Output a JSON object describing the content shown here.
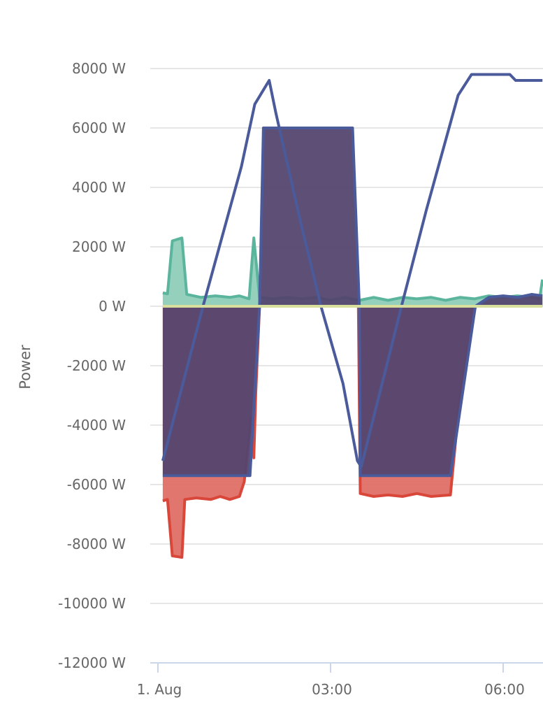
{
  "chart_data": {
    "type": "area",
    "title": "",
    "xlabel": "",
    "ylabel": "Power",
    "y_unit": "W",
    "ylim": [
      -12000,
      8000
    ],
    "y_ticks": [
      8000,
      6000,
      4000,
      2000,
      0,
      -2000,
      -4000,
      -6000,
      -8000,
      -10000,
      -12000
    ],
    "y_tick_labels": [
      "8000 W",
      "6000 W",
      "4000 W",
      "2000 W",
      "0 W",
      "-2000 W",
      "-4000 W",
      "-6000 W",
      "-8000 W",
      "-10000 W",
      "-12000 W"
    ],
    "x_ticks": [
      "00:00",
      "03:00",
      "06:00"
    ],
    "x_tick_labels": [
      "1. Aug",
      "03:00",
      "06:00"
    ],
    "grid": true,
    "legend": "none",
    "series": [
      {
        "type": "area",
        "color": "#d9473a",
        "fill": "#df6f66",
        "points": [
          [
            "00:05",
            -6550
          ],
          [
            "00:10",
            -6500
          ],
          [
            "00:15",
            -8400
          ],
          [
            "00:25",
            -8450
          ],
          [
            "00:28",
            -6500
          ],
          [
            "00:40",
            -6450
          ],
          [
            "00:55",
            -6500
          ],
          [
            "01:05",
            -6400
          ],
          [
            "01:15",
            -6500
          ],
          [
            "01:25",
            -6400
          ],
          [
            "01:30",
            -5900
          ],
          [
            "01:37",
            -3700
          ],
          [
            "01:40",
            -5100
          ],
          [
            "01:42",
            -2900
          ],
          [
            "01:46",
            0
          ],
          [
            "03:29",
            0
          ],
          [
            "03:31",
            -6300
          ],
          [
            "03:45",
            -6400
          ],
          [
            "04:00",
            -6350
          ],
          [
            "04:15",
            -6400
          ],
          [
            "04:30",
            -6300
          ],
          [
            "04:45",
            -6400
          ],
          [
            "05:05",
            -6350
          ],
          [
            "05:15",
            -3000
          ],
          [
            "05:31",
            0
          ]
        ]
      },
      {
        "type": "area",
        "color": "#5ab59c",
        "fill": "#8fcdb9",
        "points": [
          [
            "00:05",
            450
          ],
          [
            "00:10",
            420
          ],
          [
            "00:15",
            2200
          ],
          [
            "00:25",
            2300
          ],
          [
            "00:30",
            400
          ],
          [
            "00:45",
            300
          ],
          [
            "01:00",
            350
          ],
          [
            "01:15",
            300
          ],
          [
            "01:25",
            350
          ],
          [
            "01:35",
            250
          ],
          [
            "01:40",
            2300
          ],
          [
            "01:46",
            300
          ],
          [
            "02:00",
            250
          ],
          [
            "02:15",
            300
          ],
          [
            "02:30",
            250
          ],
          [
            "02:45",
            300
          ],
          [
            "03:00",
            200
          ],
          [
            "03:15",
            300
          ],
          [
            "03:30",
            200
          ],
          [
            "03:45",
            300
          ],
          [
            "04:00",
            200
          ],
          [
            "04:15",
            300
          ],
          [
            "04:30",
            250
          ],
          [
            "04:45",
            300
          ],
          [
            "05:00",
            200
          ],
          [
            "05:15",
            300
          ],
          [
            "05:30",
            250
          ],
          [
            "05:45",
            350
          ],
          [
            "06:00",
            300
          ],
          [
            "06:15",
            350
          ],
          [
            "06:30",
            300
          ],
          [
            "06:38",
            250
          ],
          [
            "06:41",
            900
          ]
        ]
      },
      {
        "type": "area",
        "color": "#4a5a9a",
        "fill": "#54466f",
        "points": [
          [
            "00:05",
            -5700
          ],
          [
            "01:36",
            -5700
          ],
          [
            "01:46",
            0
          ],
          [
            "01:50",
            6000
          ],
          [
            "03:23",
            6000
          ],
          [
            "03:30",
            0
          ],
          [
            "03:31",
            -5700
          ],
          [
            "05:05",
            -5700
          ],
          [
            "05:31",
            0
          ],
          [
            "05:45",
            300
          ],
          [
            "06:00",
            350
          ],
          [
            "06:15",
            300
          ],
          [
            "06:30",
            400
          ],
          [
            "06:41",
            350
          ]
        ]
      },
      {
        "type": "line",
        "color": "#4a5a9a",
        "points": [
          [
            "00:05",
            -5200
          ],
          [
            "00:47",
            0
          ],
          [
            "01:27",
            4700
          ],
          [
            "01:41",
            6800
          ],
          [
            "01:56",
            7600
          ],
          [
            "02:03",
            6500
          ],
          [
            "02:29",
            2800
          ],
          [
            "02:50",
            0
          ],
          [
            "03:13",
            -2600
          ],
          [
            "03:28",
            -5200
          ],
          [
            "03:32",
            -5400
          ],
          [
            "04:14",
            0
          ],
          [
            "04:40",
            3250
          ],
          [
            "05:13",
            7100
          ],
          [
            "05:27",
            7800
          ],
          [
            "06:07",
            7800
          ],
          [
            "06:13",
            7600
          ],
          [
            "06:41",
            7600
          ]
        ]
      },
      {
        "type": "line",
        "color": "#d8df9c",
        "points": [
          [
            "00:05",
            0
          ],
          [
            "06:41",
            0
          ]
        ]
      }
    ]
  }
}
